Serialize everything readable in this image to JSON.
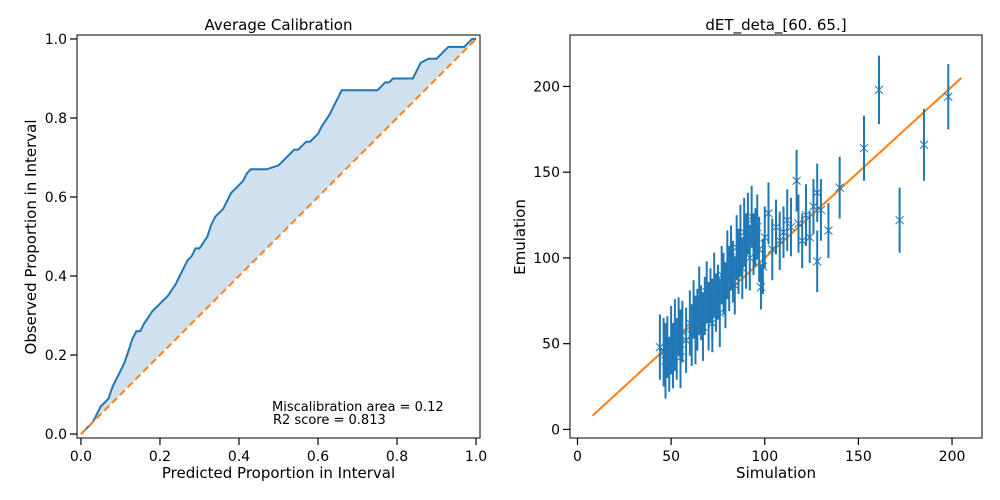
{
  "colors": {
    "blue": "#1f77b4",
    "orange": "#ff7f0e",
    "fill": "#cfe0ee"
  },
  "chart_data": [
    {
      "type": "line",
      "title": "Average Calibration",
      "xlabel": "Predicted Proportion in Interval",
      "ylabel": "Observed Proportion in Interval",
      "xlim": [
        -0.01,
        1.01
      ],
      "ylim": [
        -0.01,
        1.01
      ],
      "xticks": [
        "0.0",
        "0.2",
        "0.4",
        "0.6",
        "0.8",
        "1.0"
      ],
      "yticks": [
        "0.0",
        "0.2",
        "0.4",
        "0.6",
        "0.8",
        "1.0"
      ],
      "grid": false,
      "annotations": [
        "Miscalibration area = 0.12",
        "R2 score = 0.813"
      ],
      "series": [
        {
          "x": [
            0.0,
            0.02,
            0.03,
            0.04,
            0.05,
            0.06,
            0.07,
            0.08,
            0.09,
            0.1,
            0.11,
            0.12,
            0.13,
            0.14,
            0.15,
            0.16,
            0.18,
            0.19,
            0.2,
            0.21,
            0.22,
            0.24,
            0.25,
            0.26,
            0.27,
            0.28,
            0.29,
            0.3,
            0.32,
            0.33,
            0.34,
            0.35,
            0.36,
            0.37,
            0.38,
            0.39,
            0.4,
            0.41,
            0.42,
            0.43,
            0.44,
            0.45,
            0.46,
            0.47,
            0.5,
            0.51,
            0.53,
            0.54,
            0.55,
            0.57,
            0.58,
            0.59,
            0.6,
            0.61,
            0.63,
            0.64,
            0.65,
            0.66,
            0.67,
            0.75,
            0.76,
            0.77,
            0.78,
            0.79,
            0.84,
            0.85,
            0.86,
            0.88,
            0.9,
            0.91,
            0.92,
            0.93,
            0.97,
            0.98,
            0.99,
            1.0
          ],
          "y": [
            0.0,
            0.02,
            0.03,
            0.05,
            0.07,
            0.08,
            0.09,
            0.12,
            0.14,
            0.16,
            0.18,
            0.21,
            0.24,
            0.26,
            0.26,
            0.28,
            0.31,
            0.32,
            0.33,
            0.34,
            0.35,
            0.38,
            0.4,
            0.42,
            0.44,
            0.45,
            0.47,
            0.47,
            0.5,
            0.53,
            0.55,
            0.56,
            0.57,
            0.59,
            0.61,
            0.62,
            0.63,
            0.64,
            0.66,
            0.67,
            0.67,
            0.67,
            0.67,
            0.67,
            0.68,
            0.69,
            0.71,
            0.72,
            0.72,
            0.74,
            0.74,
            0.75,
            0.76,
            0.78,
            0.81,
            0.83,
            0.85,
            0.87,
            0.87,
            0.87,
            0.88,
            0.89,
            0.89,
            0.9,
            0.9,
            0.92,
            0.94,
            0.95,
            0.95,
            0.96,
            0.97,
            0.98,
            0.98,
            0.99,
            1.0,
            1.0
          ]
        },
        {
          "x": [
            0.0,
            1.0
          ],
          "y": [
            0.0,
            1.0
          ]
        }
      ]
    },
    {
      "type": "scatter",
      "title": "dET_deta_[60. 65.]",
      "xlabel": "Simulation",
      "ylabel": "Emulation",
      "xlim": [
        -4,
        216
      ],
      "ylim": [
        -5,
        230
      ],
      "xticks": [
        0,
        50,
        100,
        150,
        200
      ],
      "yticks": [
        0,
        50,
        100,
        150,
        200
      ],
      "grid": false,
      "line": {
        "x": [
          8,
          205
        ],
        "y": [
          8,
          205
        ]
      },
      "points": [
        {
          "x": 44,
          "y": 48,
          "err": 19
        },
        {
          "x": 46,
          "y": 45,
          "err": 20
        },
        {
          "x": 47,
          "y": 40,
          "err": 22
        },
        {
          "x": 48,
          "y": 48,
          "err": 18
        },
        {
          "x": 49,
          "y": 38,
          "err": 16
        },
        {
          "x": 50,
          "y": 52,
          "err": 20
        },
        {
          "x": 51,
          "y": 43,
          "err": 19
        },
        {
          "x": 52,
          "y": 55,
          "err": 21
        },
        {
          "x": 53,
          "y": 47,
          "err": 18
        },
        {
          "x": 54,
          "y": 60,
          "err": 17
        },
        {
          "x": 55,
          "y": 50,
          "err": 20
        },
        {
          "x": 55,
          "y": 42,
          "err": 18
        },
        {
          "x": 56,
          "y": 57,
          "err": 18
        },
        {
          "x": 58,
          "y": 52,
          "err": 19
        },
        {
          "x": 60,
          "y": 62,
          "err": 19
        },
        {
          "x": 61,
          "y": 55,
          "err": 18
        },
        {
          "x": 62,
          "y": 70,
          "err": 17
        },
        {
          "x": 63,
          "y": 58,
          "err": 20
        },
        {
          "x": 64,
          "y": 64,
          "err": 18
        },
        {
          "x": 65,
          "y": 75,
          "err": 20
        },
        {
          "x": 66,
          "y": 68,
          "err": 16
        },
        {
          "x": 67,
          "y": 60,
          "err": 20
        },
        {
          "x": 68,
          "y": 72,
          "err": 17
        },
        {
          "x": 69,
          "y": 80,
          "err": 18
        },
        {
          "x": 70,
          "y": 66,
          "err": 20
        },
        {
          "x": 71,
          "y": 78,
          "err": 16
        },
        {
          "x": 72,
          "y": 70,
          "err": 18
        },
        {
          "x": 72,
          "y": 62,
          "err": 17
        },
        {
          "x": 73,
          "y": 84,
          "err": 19
        },
        {
          "x": 74,
          "y": 74,
          "err": 17
        },
        {
          "x": 75,
          "y": 80,
          "err": 16
        },
        {
          "x": 76,
          "y": 68,
          "err": 20
        },
        {
          "x": 77,
          "y": 90,
          "err": 17
        },
        {
          "x": 78,
          "y": 85,
          "err": 18
        },
        {
          "x": 79,
          "y": 78,
          "err": 19
        },
        {
          "x": 80,
          "y": 96,
          "err": 20
        },
        {
          "x": 81,
          "y": 88,
          "err": 19
        },
        {
          "x": 82,
          "y": 100,
          "err": 19
        },
        {
          "x": 83,
          "y": 92,
          "err": 18
        },
        {
          "x": 84,
          "y": 84,
          "err": 17
        },
        {
          "x": 85,
          "y": 106,
          "err": 19
        },
        {
          "x": 86,
          "y": 98,
          "err": 19
        },
        {
          "x": 87,
          "y": 110,
          "err": 21
        },
        {
          "x": 88,
          "y": 94,
          "err": 18
        },
        {
          "x": 89,
          "y": 115,
          "err": 20
        },
        {
          "x": 90,
          "y": 104,
          "err": 22
        },
        {
          "x": 91,
          "y": 120,
          "err": 18
        },
        {
          "x": 92,
          "y": 100,
          "err": 19
        },
        {
          "x": 93,
          "y": 124,
          "err": 18
        },
        {
          "x": 94,
          "y": 108,
          "err": 18
        },
        {
          "x": 95,
          "y": 112,
          "err": 17
        },
        {
          "x": 96,
          "y": 118,
          "err": 19
        },
        {
          "x": 97,
          "y": 105,
          "err": 19
        },
        {
          "x": 98,
          "y": 83,
          "err": 13
        },
        {
          "x": 99,
          "y": 95,
          "err": 16
        },
        {
          "x": 100,
          "y": 112,
          "err": 18
        },
        {
          "x": 102,
          "y": 126,
          "err": 18
        },
        {
          "x": 104,
          "y": 105,
          "err": 18
        },
        {
          "x": 106,
          "y": 118,
          "err": 16
        },
        {
          "x": 108,
          "y": 110,
          "err": 17
        },
        {
          "x": 110,
          "y": 115,
          "err": 15
        },
        {
          "x": 112,
          "y": 122,
          "err": 18
        },
        {
          "x": 114,
          "y": 118,
          "err": 17
        },
        {
          "x": 117,
          "y": 145,
          "err": 18
        },
        {
          "x": 118,
          "y": 120,
          "err": 17
        },
        {
          "x": 120,
          "y": 110,
          "err": 16
        },
        {
          "x": 122,
          "y": 125,
          "err": 18
        },
        {
          "x": 124,
          "y": 112,
          "err": 15
        },
        {
          "x": 126,
          "y": 130,
          "err": 16
        },
        {
          "x": 128,
          "y": 98,
          "err": 18
        },
        {
          "x": 128,
          "y": 138,
          "err": 17
        },
        {
          "x": 130,
          "y": 128,
          "err": 18
        },
        {
          "x": 134,
          "y": 116,
          "err": 16
        },
        {
          "x": 140,
          "y": 141,
          "err": 18
        },
        {
          "x": 153,
          "y": 164,
          "err": 19
        },
        {
          "x": 161,
          "y": 198,
          "err": 20
        },
        {
          "x": 172,
          "y": 122,
          "err": 19
        },
        {
          "x": 185,
          "y": 166,
          "err": 21
        },
        {
          "x": 198,
          "y": 194,
          "err": 19
        }
      ]
    }
  ]
}
